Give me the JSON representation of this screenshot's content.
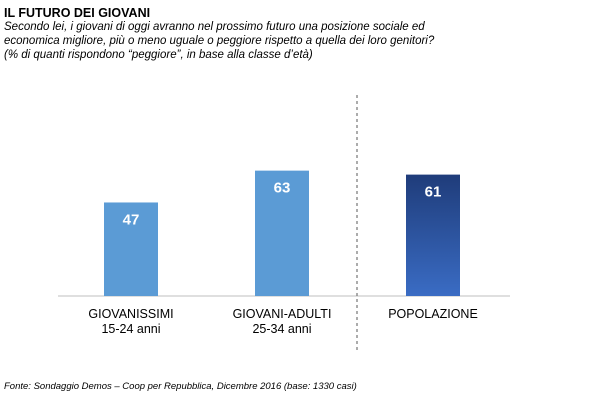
{
  "header": {
    "title": "IL FUTURO DEI GIOVANI",
    "subtitle_lines": [
      "Secondo lei, i giovani di oggi avranno nel prossimo futuro una posizione sociale ed",
      "economica migliore, più o meno uguale  o peggiore  rispetto a quella dei loro genitori?",
      "(% di quanti rispondono  “peggiore”,  in base alla classe d’età)"
    ]
  },
  "chart_data": {
    "type": "bar",
    "categories": [
      [
        "GIOVANISSIMI",
        "15-24 anni"
      ],
      [
        "GIOVANI-ADULTI",
        "25-34 anni"
      ],
      [
        "POPOLAZIONE"
      ]
    ],
    "values": [
      47,
      63,
      61
    ],
    "bar_colors": [
      "#5b9bd5",
      "#5b9bd5",
      "#2f5597"
    ],
    "gradient_on_last": true,
    "ylim": [
      0,
      100
    ],
    "grid": false,
    "separator_before_last": true
  },
  "colors": {
    "bar_light": "#5b9bd5",
    "bar_dark_top": "#1f3c7a",
    "bar_dark_bottom": "#3a6cc4",
    "label_text": "#ffffff",
    "axis": "#bfbfbf",
    "separator": "#7f7f7f"
  },
  "footer": {
    "source": "Fonte: Sondaggio Demos – Coop per Repubblica, Dicembre 2016 (base: 1330 casi)"
  }
}
